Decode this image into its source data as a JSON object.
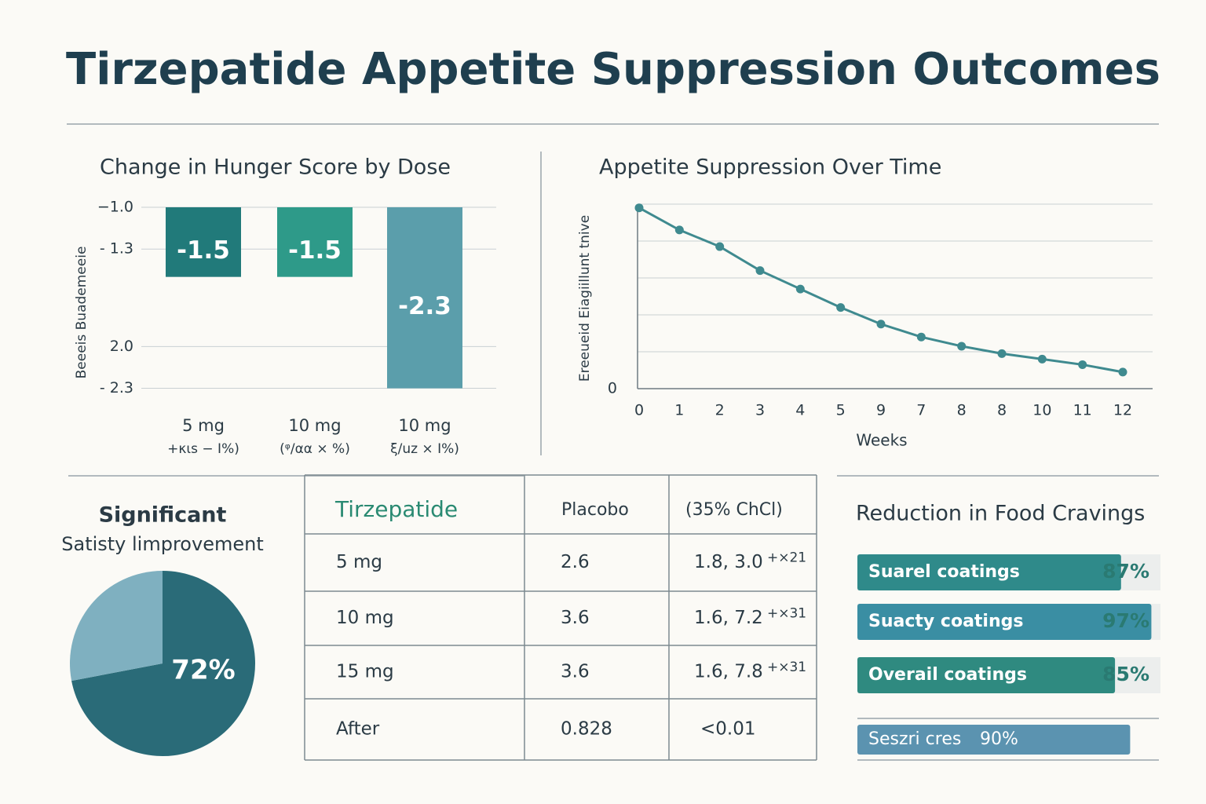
{
  "title": "Tirzepatide Appetite Suppression Outcomes",
  "chart_data": [
    {
      "type": "bar",
      "title": "Change in Hunger Score by Dose",
      "y_label": "Beeeis Buademeeie",
      "categories": [
        "5 mg",
        "10 mg",
        "10 mg"
      ],
      "category_notes": [
        "+κιs − I%)",
        "(ᵠ/αα × %)",
        "ξ/uz × I%)"
      ],
      "values": [
        -1.5,
        -1.5,
        -2.3
      ],
      "colors": [
        "#217a7a",
        "#2e9a89",
        "#5b9eab"
      ],
      "ylim": [
        -1.0,
        -2.5
      ],
      "yticks": [
        {
          "value": -1.0,
          "label": "−1.0"
        },
        {
          "value": -1.3,
          "label": "- 1.3"
        },
        {
          "value": -2.0,
          "label": "2.0"
        },
        {
          "value": -2.3,
          "label": "- 2.3"
        }
      ],
      "grid": true
    },
    {
      "type": "line",
      "title": "Appetite Suppression Over Time",
      "y_label": "Ereeueid Eiagiillunt tnive",
      "x_label": "Weeks",
      "categories": [
        "0",
        "1",
        "2",
        "3",
        "4",
        "5",
        "9",
        "7",
        "8",
        "8",
        "10",
        "11",
        "12"
      ],
      "values": [
        98,
        86,
        77,
        64,
        54,
        44,
        35,
        28,
        23,
        19,
        16,
        13,
        9
      ],
      "color": "#3f8a8f",
      "ylim": [
        0,
        100
      ],
      "yticks": [
        0
      ],
      "grid": true
    },
    {
      "type": "pie",
      "title": "Significant",
      "subtitle": "Satisty limprovement",
      "values": [
        72,
        28
      ],
      "value_labels": [
        "72%",
        null
      ],
      "colors": [
        "#2a6b78",
        "#7fb0c0"
      ]
    },
    {
      "type": "hbar",
      "title": "Reduction in Food Cravings",
      "categories": [
        "Suarel coatings",
        "Suacty coatings",
        "Overail coatings",
        "Seszri cres"
      ],
      "values": [
        87,
        97,
        85,
        90
      ],
      "value_labels": [
        "87%",
        "97%",
        "85%",
        "90%"
      ],
      "colors": [
        "#2f8a8a",
        "#3a8ea3",
        "#2f8a80",
        "#5b93b0"
      ],
      "xlim": [
        0,
        100
      ]
    }
  ],
  "table": {
    "header": [
      "Tirzepatide",
      "Placobo",
      "(35% ChCl)"
    ],
    "rows": [
      [
        "5 mg",
        "2.6",
        "1.8, 3.0",
        "+×21"
      ],
      [
        "10 mg",
        "3.6",
        "1.6, 7.2",
        "+×31"
      ],
      [
        "15 mg",
        "3.6",
        "1.6, 7.8",
        "+×31"
      ],
      [
        "After",
        "0.828",
        "<0.01"
      ]
    ]
  }
}
